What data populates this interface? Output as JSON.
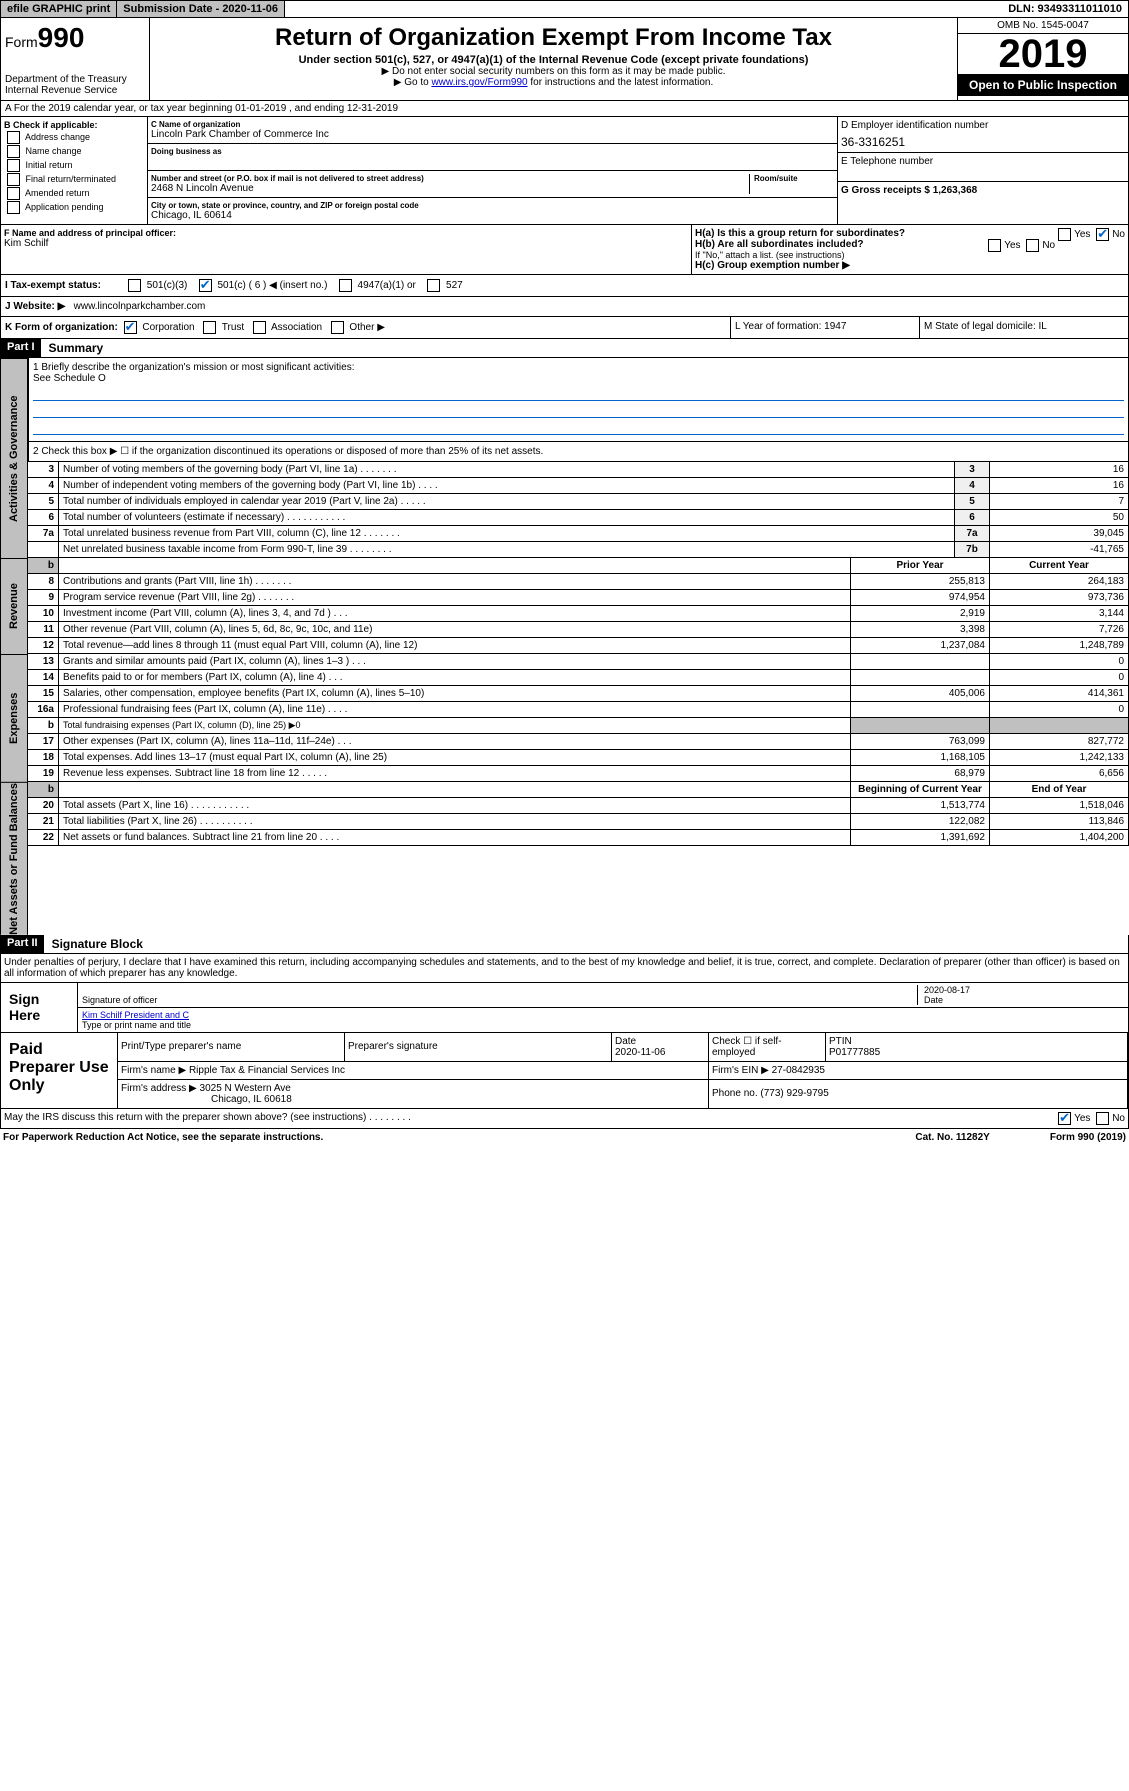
{
  "topbar": {
    "efile": "efile GRAPHIC print",
    "subdate_lbl": "Submission Date - 2020-11-06",
    "dln": "DLN: 93493311011010"
  },
  "header": {
    "form_label": "Form",
    "form_num": "990",
    "dept": "Department of the Treasury",
    "irs": "Internal Revenue Service",
    "title": "Return of Organization Exempt From Income Tax",
    "subtitle": "Under section 501(c), 527, or 4947(a)(1) of the Internal Revenue Code (except private foundations)",
    "note1": "▶ Do not enter social security numbers on this form as it may be made public.",
    "note2_pre": "▶ Go to ",
    "note2_link": "www.irs.gov/Form990",
    "note2_post": " for instructions and the latest information.",
    "omb": "OMB No. 1545-0047",
    "year": "2019",
    "open": "Open to Public Inspection"
  },
  "rowA": "A For the 2019 calendar year, or tax year beginning 01-01-2019     , and ending 12-31-2019",
  "colB": {
    "title": "B Check if applicable:",
    "items": [
      "Address change",
      "Name change",
      "Initial return",
      "Final return/terminated",
      "Amended return",
      "Application pending"
    ]
  },
  "colC": {
    "name_lbl": "C Name of organization",
    "name": "Lincoln Park Chamber of Commerce Inc",
    "dba_lbl": "Doing business as",
    "addr_lbl": "Number and street (or P.O. box if mail is not delivered to street address)",
    "room_lbl": "Room/suite",
    "addr": "2468 N Lincoln Avenue",
    "city_lbl": "City or town, state or province, country, and ZIP or foreign postal code",
    "city": "Chicago, IL  60614"
  },
  "colDE": {
    "d_lbl": "D Employer identification number",
    "d_val": "36-3316251",
    "e_lbl": "E Telephone number",
    "g_lbl": "G Gross receipts $ 1,263,368"
  },
  "rowF": {
    "f_lbl": "F Name and address of principal officer:",
    "f_name": "Kim Schilf",
    "h_a": "H(a)  Is this a group return for subordinates?",
    "h_b": "H(b)  Are all subordinates included?",
    "h_note": "If \"No,\" attach a list. (see instructions)",
    "h_c": "H(c)  Group exemption number ▶"
  },
  "tax_status_lbl": "I  Tax-exempt status:",
  "tax_opts": [
    "501(c)(3)",
    "501(c) ( 6 ) ◀ (insert no.)",
    "4947(a)(1) or",
    "527"
  ],
  "website_lbl": "J  Website: ▶",
  "website": "www.lincolnparkchamber.com",
  "rowK": {
    "k_lbl": "K Form of organization:",
    "k_opts": [
      "Corporation",
      "Trust",
      "Association",
      "Other ▶"
    ],
    "l": "L Year of formation: 1947",
    "m": "M State of legal domicile: IL"
  },
  "part1": {
    "label": "Part I",
    "title": "Summary",
    "q1": "1  Briefly describe the organization's mission or most significant activities:",
    "q1a": "See Schedule O",
    "q2": "2   Check this box ▶ ☐  if the organization discontinued its operations or disposed of more than 25% of its net assets.",
    "sections": [
      {
        "side": "Activities & Governance",
        "rows": [
          {
            "n": "3",
            "t": "Number of voting members of the governing body (Part VI, line 1a)    .    .    .    .    .    .    .",
            "box": "3",
            "v": "16"
          },
          {
            "n": "4",
            "t": "Number of independent voting members of the governing body (Part VI, line 1b)    .    .    .    .",
            "box": "4",
            "v": "16"
          },
          {
            "n": "5",
            "t": "Total number of individuals employed in calendar year 2019 (Part V, line 2a)    .    .    .    .    .",
            "box": "5",
            "v": "7"
          },
          {
            "n": "6",
            "t": "Total number of volunteers (estimate if necessary)    .    .    .    .    .    .    .    .    .    .    .",
            "box": "6",
            "v": "50"
          },
          {
            "n": "7a",
            "t": "Total unrelated business revenue from Part VIII, column (C), line 12    .    .    .    .    .    .    .",
            "box": "7a",
            "v": "39,045"
          },
          {
            "n": "",
            "t": "Net unrelated business taxable income from Form 990-T, line 39    .    .    .    .    .    .    .    .",
            "box": "7b",
            "v": "-41,765"
          }
        ]
      },
      {
        "side": "Revenue",
        "header": [
          "Prior Year",
          "Current Year"
        ],
        "rows": [
          {
            "n": "8",
            "t": "Contributions and grants (Part VIII, line 1h)    .    .    .    .    .    .    .",
            "p": "255,813",
            "c": "264,183"
          },
          {
            "n": "9",
            "t": "Program service revenue (Part VIII, line 2g)    .    .    .    .    .    .    .",
            "p": "974,954",
            "c": "973,736"
          },
          {
            "n": "10",
            "t": "Investment income (Part VIII, column (A), lines 3, 4, and 7d )    .    .    .",
            "p": "2,919",
            "c": "3,144"
          },
          {
            "n": "11",
            "t": "Other revenue (Part VIII, column (A), lines 5, 6d, 8c, 9c, 10c, and 11e)",
            "p": "3,398",
            "c": "7,726"
          },
          {
            "n": "12",
            "t": "Total revenue—add lines 8 through 11 (must equal Part VIII, column (A), line 12)",
            "p": "1,237,084",
            "c": "1,248,789"
          }
        ]
      },
      {
        "side": "Expenses",
        "rows": [
          {
            "n": "13",
            "t": "Grants and similar amounts paid (Part IX, column (A), lines 1–3 )    .    .    .",
            "p": "",
            "c": "0"
          },
          {
            "n": "14",
            "t": "Benefits paid to or for members (Part IX, column (A), line 4)    .    .    .",
            "p": "",
            "c": "0"
          },
          {
            "n": "15",
            "t": "Salaries, other compensation, employee benefits (Part IX, column (A), lines 5–10)",
            "p": "405,006",
            "c": "414,361"
          },
          {
            "n": "16a",
            "t": "Professional fundraising fees (Part IX, column (A), line 11e)    .    .    .    .",
            "p": "",
            "c": "0"
          },
          {
            "n": "b",
            "t": "Total fundraising expenses (Part IX, column (D), line 25) ▶0",
            "p": "—",
            "c": "—"
          },
          {
            "n": "17",
            "t": "Other expenses (Part IX, column (A), lines 11a–11d, 11f–24e)    .    .    .",
            "p": "763,099",
            "c": "827,772"
          },
          {
            "n": "18",
            "t": "Total expenses. Add lines 13–17 (must equal Part IX, column (A), line 25)",
            "p": "1,168,105",
            "c": "1,242,133"
          },
          {
            "n": "19",
            "t": "Revenue less expenses. Subtract line 18 from line 12    .    .    .    .    .",
            "p": "68,979",
            "c": "6,656"
          }
        ]
      },
      {
        "side": "Net Assets or Fund Balances",
        "header": [
          "Beginning of Current Year",
          "End of Year"
        ],
        "rows": [
          {
            "n": "20",
            "t": "Total assets (Part X, line 16)    .    .    .    .    .    .    .    .    .    .    .",
            "p": "1,513,774",
            "c": "1,518,046"
          },
          {
            "n": "21",
            "t": "Total liabilities (Part X, line 26)    .    .    .    .    .    .    .    .    .    .",
            "p": "122,082",
            "c": "113,846"
          },
          {
            "n": "22",
            "t": "Net assets or fund balances. Subtract line 21 from line 20    .    .    .    .",
            "p": "1,391,692",
            "c": "1,404,200"
          }
        ]
      }
    ]
  },
  "part2": {
    "label": "Part II",
    "title": "Signature Block",
    "decl": "Under penalties of perjury, I declare that I have examined this return, including accompanying schedules and statements, and to the best of my knowledge and belief, it is true, correct, and complete. Declaration of preparer (other than officer) is based on all information of which preparer has any knowledge.",
    "sign_here": "Sign Here",
    "sig_off": "Signature of officer",
    "sig_date": "2020-08-17",
    "date_lbl": "Date",
    "name": "Kim Schilf  President and C",
    "name_lbl": "Type or print name and title",
    "paid": "Paid Preparer Use Only",
    "prep_name_lbl": "Print/Type preparer's name",
    "prep_sig_lbl": "Preparer's signature",
    "prep_date_lbl": "Date",
    "prep_date": "2020-11-06",
    "check_lbl": "Check ☐ if self-employed",
    "ptin_lbl": "PTIN",
    "ptin": "P01777885",
    "firm_name_lbl": "Firm's name     ▶",
    "firm_name": "Ripple Tax & Financial Services Inc",
    "firm_ein_lbl": "Firm's EIN ▶",
    "firm_ein": "27-0842935",
    "firm_addr_lbl": "Firm's address ▶",
    "firm_addr": "3025 N Western Ave",
    "firm_city": "Chicago, IL  60618",
    "phone_lbl": "Phone no.",
    "phone": "(773) 929-9795"
  },
  "footer": {
    "discuss": "May the IRS discuss this return with the preparer shown above? (see instructions)    .    .    .    .    .    .    .    .",
    "yes": "Yes",
    "no": "No",
    "paperwork": "For Paperwork Reduction Act Notice, see the separate instructions.",
    "cat": "Cat. No. 11282Y",
    "form": "Form 990 (2019)"
  }
}
